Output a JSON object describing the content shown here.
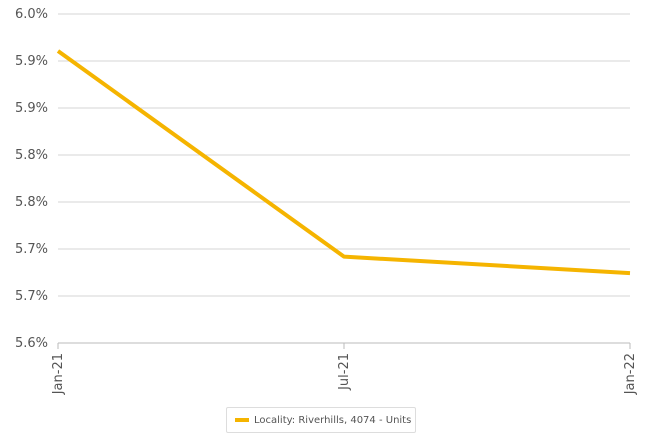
{
  "chart_data": {
    "type": "line",
    "x": [
      "Jan-21",
      "Jul-21",
      "Jan-22"
    ],
    "series": [
      {
        "name": "Locality: Riverhills, 4074 - Units",
        "values": [
          5.955,
          5.705,
          5.685
        ],
        "color": "#f5b400"
      }
    ],
    "y_tick_labels": [
      "6.0%",
      "5.9%",
      "5.9%",
      "5.8%",
      "5.8%",
      "5.7%",
      "5.7%",
      "5.6%"
    ],
    "ylim": [
      5.6,
      6.0
    ],
    "y_unit": "%",
    "grid": true,
    "legend": "bottom-center"
  }
}
